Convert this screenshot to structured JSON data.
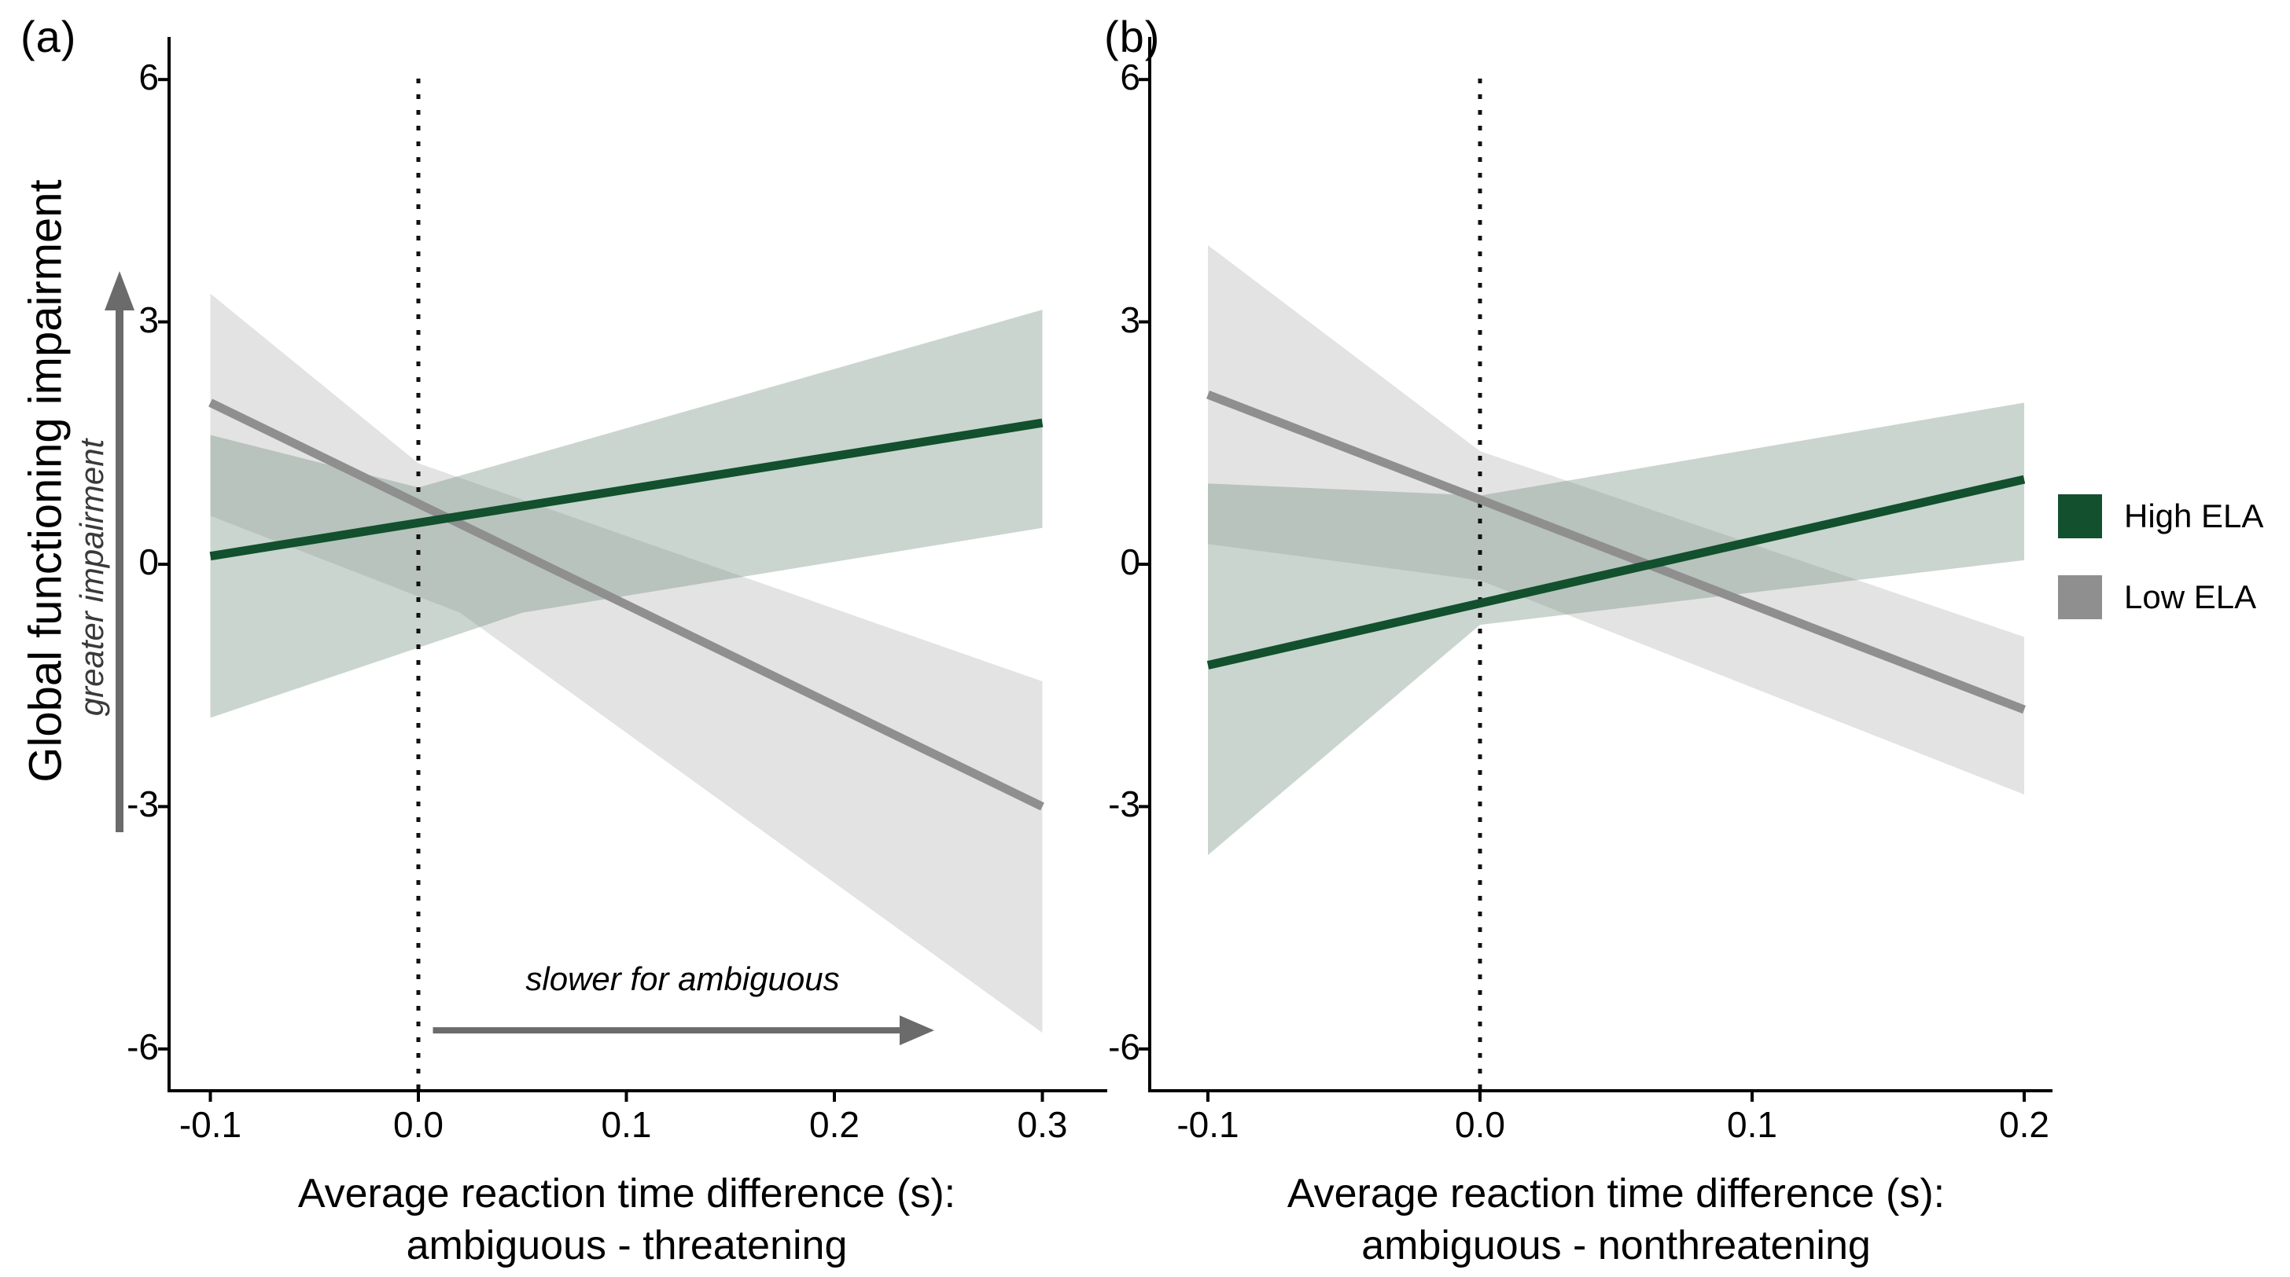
{
  "figure": {
    "background": "#ffffff"
  },
  "y_axis": {
    "label": "Global functioning impairment",
    "sublabel": "greater impairment",
    "ticks": [
      {
        "label": "6",
        "value": 6
      },
      {
        "label": "3",
        "value": 3
      },
      {
        "label": "0",
        "value": 0
      },
      {
        "label": "-3",
        "value": -3
      },
      {
        "label": "-6",
        "value": -6
      }
    ]
  },
  "legend": {
    "items": [
      {
        "label": "High ELA",
        "color": "#12502e"
      },
      {
        "label": "Low ELA",
        "color": "#8f8f8f"
      }
    ]
  },
  "chart_data": {
    "type": "line",
    "grid": false,
    "ylim": [
      -6.5,
      6.5
    ],
    "ylabel": "Global functioning impairment",
    "legend_position": "right",
    "panels": [
      {
        "label": "(a)",
        "xlabel_line1": "Average reaction time difference (s):",
        "xlabel_line2": "ambiguous - threatening",
        "x_range": [
          -0.1,
          0.3
        ],
        "x_ticks": [
          {
            "label": "-0.1",
            "value": -0.1
          },
          {
            "label": "0.0",
            "value": 0.0
          },
          {
            "label": "0.1",
            "value": 0.1
          },
          {
            "label": "0.2",
            "value": 0.2
          },
          {
            "label": "0.3",
            "value": 0.3
          }
        ],
        "vline_x": 0.0,
        "annotation": {
          "text": "slower for ambiguous",
          "text_x": 0.127,
          "text_y": -5.2,
          "arrow_x1": 0.007,
          "arrow_x2": 0.248,
          "arrow_y": -5.77
        },
        "series": [
          {
            "name": "High ELA",
            "color": "#12502e",
            "band_color": "rgba(104,135,117,0.35)",
            "line": [
              [
                -0.1,
                0.1
              ],
              [
                0.3,
                1.75
              ]
            ],
            "ci_upper": [
              [
                -0.1,
                1.6
              ],
              [
                0.0,
                0.95
              ],
              [
                0.3,
                3.15
              ]
            ],
            "ci_lower": [
              [
                -0.1,
                -1.9
              ],
              [
                0.05,
                -0.6
              ],
              [
                0.3,
                0.45
              ]
            ]
          },
          {
            "name": "Low ELA",
            "color": "#8f8f8f",
            "band_color": "rgba(150,150,150,0.27)",
            "line": [
              [
                -0.1,
                2.0
              ],
              [
                0.3,
                -3.0
              ]
            ],
            "ci_upper": [
              [
                -0.1,
                3.35
              ],
              [
                0.0,
                1.25
              ],
              [
                0.3,
                -1.45
              ]
            ],
            "ci_lower": [
              [
                -0.1,
                0.6
              ],
              [
                0.02,
                -0.6
              ],
              [
                0.3,
                -5.8
              ]
            ]
          }
        ]
      },
      {
        "label": "(b)",
        "xlabel_line1": "Average reaction time difference (s):",
        "xlabel_line2": "ambiguous - nonthreatening",
        "x_range": [
          -0.1,
          0.2
        ],
        "x_ticks": [
          {
            "label": "-0.1",
            "value": -0.1
          },
          {
            "label": "0.0",
            "value": 0.0
          },
          {
            "label": "0.1",
            "value": 0.1
          },
          {
            "label": "0.2",
            "value": 0.2
          }
        ],
        "vline_x": 0.0,
        "annotation": null,
        "series": [
          {
            "name": "High ELA",
            "color": "#12502e",
            "band_color": "rgba(104,135,117,0.35)",
            "line": [
              [
                -0.1,
                -1.25
              ],
              [
                0.2,
                1.05
              ]
            ],
            "ci_upper": [
              [
                -0.1,
                1.0
              ],
              [
                0.0,
                0.85
              ],
              [
                0.2,
                2.0
              ]
            ],
            "ci_lower": [
              [
                -0.1,
                -3.6
              ],
              [
                0.0,
                -0.75
              ],
              [
                0.2,
                0.05
              ]
            ]
          },
          {
            "name": "Low ELA",
            "color": "#8f8f8f",
            "band_color": "rgba(150,150,150,0.27)",
            "line": [
              [
                -0.1,
                2.1
              ],
              [
                0.2,
                -1.8
              ]
            ],
            "ci_upper": [
              [
                -0.1,
                3.95
              ],
              [
                0.0,
                1.4
              ],
              [
                0.2,
                -0.9
              ]
            ],
            "ci_lower": [
              [
                -0.1,
                0.25
              ],
              [
                0.0,
                -0.2
              ],
              [
                0.2,
                -2.85
              ]
            ]
          }
        ]
      }
    ]
  }
}
